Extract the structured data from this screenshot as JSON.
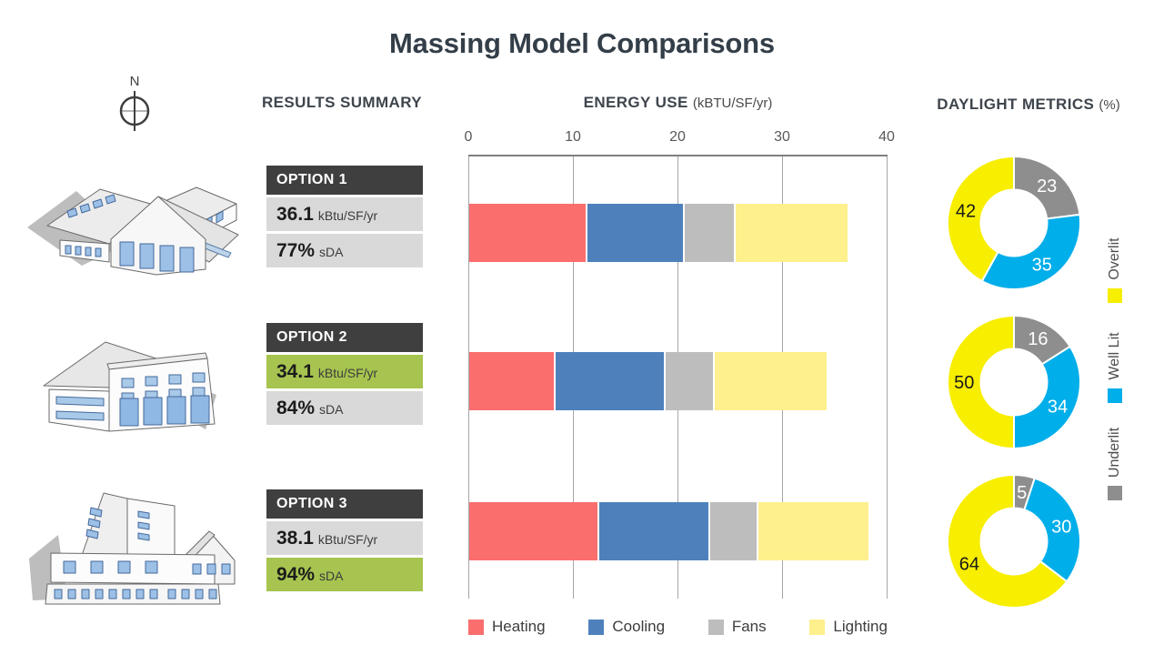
{
  "title": "Massing Model Comparisons",
  "north_label": "N",
  "section_headers": {
    "results": "RESULTS SUMMARY",
    "energy": "ENERGY USE",
    "energy_unit": "(kBTU/SF/yr)",
    "daylight": "DAYLIGHT METRICS",
    "daylight_unit": "(%)"
  },
  "options": [
    {
      "name": "OPTION 1",
      "eui_value": "36.1",
      "eui_unit": "kBtu/SF/yr",
      "eui_highlight": false,
      "sda_value": "77%",
      "sda_unit": "sDA",
      "sda_highlight": false
    },
    {
      "name": "OPTION 2",
      "eui_value": "34.1",
      "eui_unit": "kBtu/SF/yr",
      "eui_highlight": true,
      "sda_value": "84%",
      "sda_unit": "sDA",
      "sda_highlight": false
    },
    {
      "name": "OPTION 3",
      "eui_value": "38.1",
      "eui_unit": "kBtu/SF/yr",
      "eui_highlight": false,
      "sda_value": "94%",
      "sda_unit": "sDA",
      "sda_highlight": true
    }
  ],
  "colors": {
    "option_header_bg": "#3f3f3f",
    "row_gray": "#d9d9d9",
    "row_green": "#a6c44f",
    "grid": "#a6a6a6",
    "axis": "#7f7f7f"
  },
  "energy_legend": [
    {
      "label": "Heating",
      "color": "#fa6e6e"
    },
    {
      "label": "Cooling",
      "color": "#4e81bc"
    },
    {
      "label": "Fans",
      "color": "#bdbdbd"
    },
    {
      "label": "Lighting",
      "color": "#fdf08d"
    }
  ],
  "daylight_legend": [
    {
      "label": "Overlit",
      "color": "#f7ee00"
    },
    {
      "label": "Well Lit",
      "color": "#00aeea"
    },
    {
      "label": "Underlit",
      "color": "#8e8e8e"
    }
  ],
  "chart_data": [
    {
      "type": "bar",
      "stacked": true,
      "orientation": "horizontal",
      "title": "ENERGY USE (kBTU/SF/yr)",
      "categories": [
        "OPTION 1",
        "OPTION 2",
        "OPTION 3"
      ],
      "series": [
        {
          "name": "Heating",
          "color": "#fa6e6e",
          "values": [
            11.3,
            8.2,
            12.4
          ]
        },
        {
          "name": "Cooling",
          "color": "#4e81bc",
          "values": [
            9.3,
            10.5,
            10.6
          ]
        },
        {
          "name": "Fans",
          "color": "#bdbdbd",
          "values": [
            4.8,
            4.7,
            4.6
          ]
        },
        {
          "name": "Lighting",
          "color": "#fdf08d",
          "values": [
            10.7,
            10.7,
            10.5
          ]
        }
      ],
      "totals": [
        36.1,
        34.1,
        38.1
      ],
      "xlim": [
        0,
        40
      ],
      "ticks": [
        0,
        10,
        20,
        30,
        40
      ],
      "gridlines": true,
      "legend_position": "bottom"
    },
    {
      "type": "pie",
      "subtype": "donut",
      "title": "DAYLIGHT METRICS (%)",
      "segment_order": [
        "Underlit",
        "Well Lit",
        "Overlit"
      ],
      "start_angle": "top",
      "direction": "clockwise",
      "colors": {
        "Underlit": "#8e8e8e",
        "Well Lit": "#00aeea",
        "Overlit": "#f7ee00"
      },
      "label_colors": {
        "Underlit": "#ffffff",
        "Well Lit": "#ffffff",
        "Overlit": "#1a1a1a"
      },
      "legend_position": "right",
      "donuts": [
        {
          "category": "Option 1",
          "values": {
            "Underlit": 23,
            "Well Lit": 35,
            "Overlit": 42
          }
        },
        {
          "category": "Option 2",
          "values": {
            "Underlit": 16,
            "Well Lit": 34,
            "Overlit": 50
          }
        },
        {
          "category": "Option 3",
          "values": {
            "Underlit": 5,
            "Well Lit": 30,
            "Overlit": 64
          }
        }
      ]
    }
  ]
}
